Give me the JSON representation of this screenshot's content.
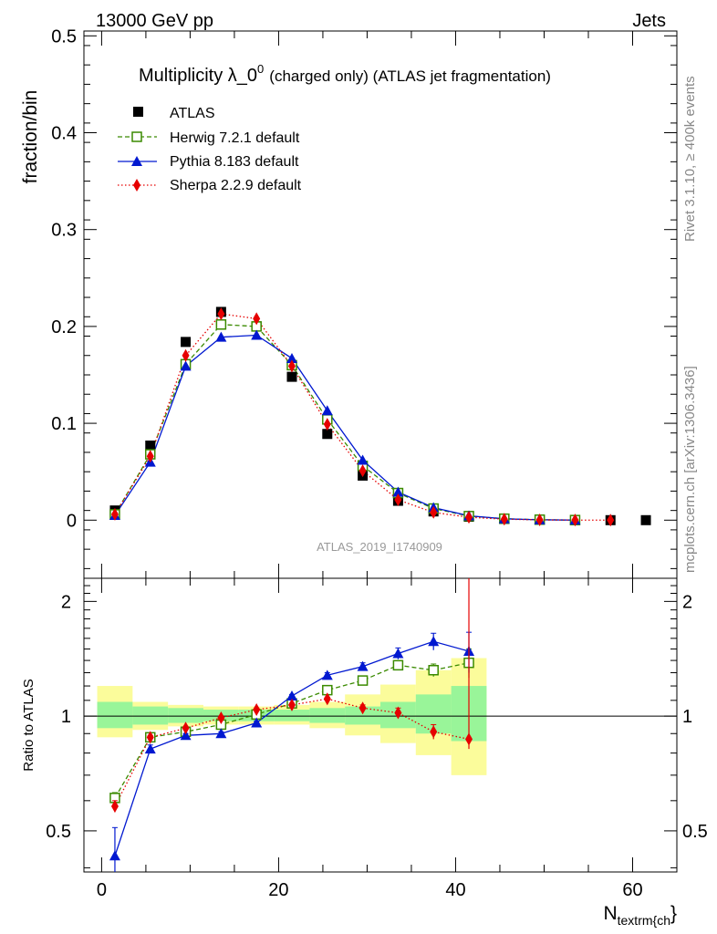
{
  "header": {
    "energy": "13000 GeV pp",
    "category": "Jets"
  },
  "side_text": {
    "rivet": "Rivet 3.1.10, ≥ 400k events",
    "source": "mcplots.cern.ch [arXiv:1306.3436]"
  },
  "colors": {
    "atlas": "#000000",
    "herwig": "#3a8a00",
    "pythia": "#0018d0",
    "sherpa": "#e60000",
    "band_inner": "#99f599",
    "band_outer": "#fbfc9b"
  },
  "chart_data": [
    {
      "type": "scatter",
      "title": "Multiplicity λ_0",
      "title_sup": "0",
      "title_suffix": "(charged only) (ATLAS jet fragmentation)",
      "analysis": "ATLAS_2019_I1740909",
      "ylabel": "fraction/bin",
      "xlim": [
        -2,
        65
      ],
      "ylim": [
        -0.06,
        0.505
      ],
      "yticks": [
        "0",
        "0.1",
        "0.2",
        "0.3",
        "0.4",
        "0.5"
      ],
      "legend_position": "top-left",
      "x": [
        1.5,
        5.5,
        9.5,
        13.5,
        17.5,
        21.5,
        25.5,
        29.5,
        33.5,
        37.5,
        41.5,
        45.5,
        49.5,
        53.5,
        57.5,
        61.5
      ],
      "series": [
        {
          "name": "ATLAS",
          "key": "atlas",
          "values": [
            0.01,
            0.077,
            0.184,
            0.215,
            0.2,
            0.148,
            0.089,
            0.046,
            0.02,
            0.009,
            0.0035,
            0.0012,
            0.0004,
            0.0001,
            0.0,
            0.0
          ]
        },
        {
          "name": "Herwig 7.2.1 default",
          "key": "herwig",
          "values": [
            0.006,
            0.068,
            0.161,
            0.202,
            0.2,
            0.16,
            0.104,
            0.056,
            0.028,
            0.012,
            0.0042,
            0.0015,
            0.0005,
            0.0001
          ]
        },
        {
          "name": "Pythia 8.183 default",
          "key": "pythia",
          "values": [
            0.005,
            0.06,
            0.159,
            0.189,
            0.191,
            0.167,
            0.113,
            0.062,
            0.029,
            0.013,
            0.0045,
            0.0014,
            0.0004,
            0.0001
          ]
        },
        {
          "name": "Sherpa 2.2.9 default",
          "key": "sherpa",
          "values": [
            0.006,
            0.066,
            0.17,
            0.213,
            0.208,
            0.159,
            0.099,
            0.051,
            0.021,
            0.008,
            0.003,
            0.001,
            0.0003,
            0.0001,
            0.0
          ]
        }
      ]
    },
    {
      "type": "scatter",
      "ylabel": "Ratio to ATLAS",
      "xlabel": "N",
      "xlabel_sub": "textrm{ch",
      "xlabel_suffix": "}",
      "xlim": [
        -2,
        65
      ],
      "ylim": [
        0.39,
        2.3
      ],
      "yscale": "log",
      "xticks": [
        "0",
        "20",
        "40",
        "60"
      ],
      "yticks": [
        "0.5",
        "1",
        "2"
      ],
      "x": [
        1.5,
        5.5,
        9.5,
        13.5,
        17.5,
        21.5,
        25.5,
        29.5,
        33.5,
        37.5,
        41.5
      ],
      "bands": {
        "edges": [
          -0.5,
          3.5,
          7.5,
          11.5,
          15.5,
          19.5,
          23.5,
          27.5,
          31.5,
          35.5,
          39.5,
          43.5
        ],
        "inner_low": [
          0.93,
          0.95,
          0.96,
          0.97,
          0.97,
          0.97,
          0.96,
          0.95,
          0.93,
          0.9,
          0.86
        ],
        "inner_high": [
          1.09,
          1.06,
          1.05,
          1.04,
          1.04,
          1.04,
          1.05,
          1.06,
          1.09,
          1.14,
          1.2
        ],
        "outer_low": [
          0.88,
          0.92,
          0.94,
          0.95,
          0.95,
          0.95,
          0.93,
          0.89,
          0.85,
          0.79,
          0.7
        ],
        "outer_high": [
          1.2,
          1.09,
          1.07,
          1.06,
          1.06,
          1.07,
          1.09,
          1.14,
          1.21,
          1.32,
          1.42
        ]
      },
      "series": [
        {
          "name": "Herwig 7.2.1 default",
          "key": "herwig",
          "values": [
            0.61,
            0.88,
            0.91,
            0.95,
            1.01,
            1.08,
            1.17,
            1.24,
            1.36,
            1.32,
            1.38
          ],
          "err": [
            0.02,
            0.01,
            0.01,
            0.01,
            0.01,
            0.01,
            0.01,
            0.02,
            0.03,
            0.05,
            0.12
          ]
        },
        {
          "name": "Pythia 8.183 default",
          "key": "pythia",
          "values": [
            0.43,
            0.82,
            0.89,
            0.9,
            0.96,
            1.13,
            1.28,
            1.35,
            1.46,
            1.57,
            1.48
          ],
          "err": [
            0.08,
            0.02,
            0.01,
            0.01,
            0.01,
            0.01,
            0.02,
            0.03,
            0.05,
            0.08,
            0.18
          ]
        },
        {
          "name": "Sherpa 2.2.9 default",
          "key": "sherpa",
          "values": [
            0.58,
            0.88,
            0.93,
            0.99,
            1.04,
            1.07,
            1.11,
            1.05,
            1.02,
            0.91,
            0.87
          ],
          "err": [
            0.02,
            0.01,
            0.01,
            0.01,
            0.01,
            0.01,
            0.01,
            0.02,
            0.03,
            0.04,
            0.05
          ],
          "spike_err": 2.2
        }
      ]
    }
  ]
}
